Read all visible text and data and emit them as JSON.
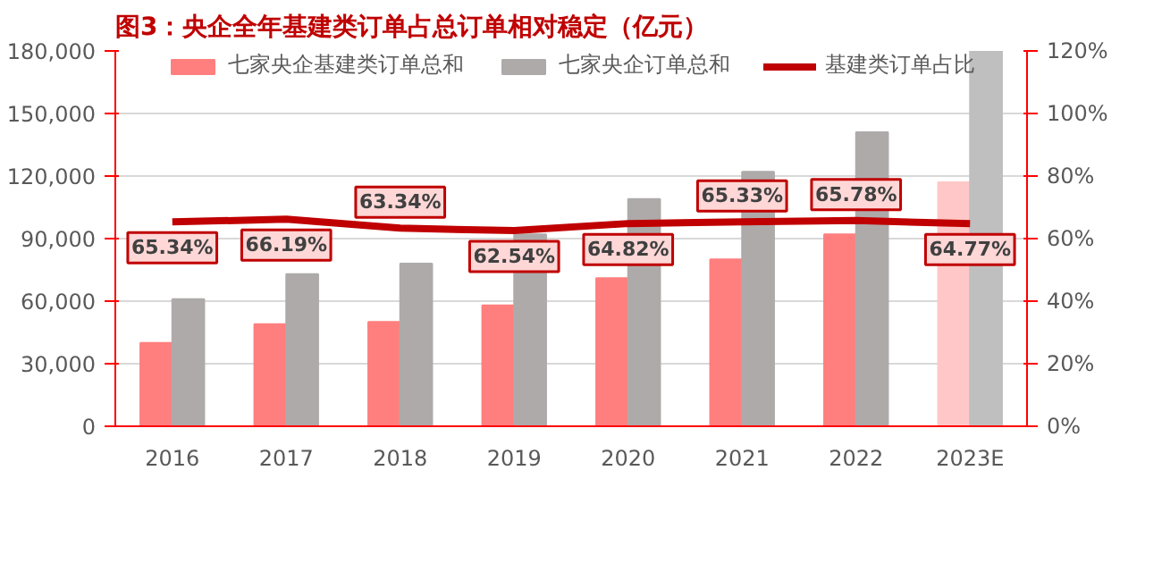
{
  "chart_data": {
    "type": "bar",
    "title": "图3：央企全年基建类订单占总订单相对稳定（亿元）",
    "categories": [
      "2016",
      "2017",
      "2018",
      "2019",
      "2020",
      "2021",
      "2022",
      "2023E"
    ],
    "series": [
      {
        "name": "七家央企基建类订单总和",
        "colors": [
          "#ff7f7f",
          "#ff7f7f",
          "#ff7f7f",
          "#ff7f7f",
          "#ff7f7f",
          "#ff7f7f",
          "#ff7f7f",
          "#ffc7c7"
        ],
        "values": [
          40000,
          49000,
          50000,
          58000,
          71000,
          80000,
          92000,
          117000
        ]
      },
      {
        "name": "七家央企订单总和",
        "colors": [
          "#aeaaaa",
          "#aeaaaa",
          "#aeaaaa",
          "#aeaaaa",
          "#aeaaaa",
          "#aeaaaa",
          "#aeaaaa",
          "#bfbfbf"
        ],
        "values": [
          61000,
          73000,
          78000,
          92000,
          109000,
          122000,
          141000,
          180000
        ]
      },
      {
        "name": "基建类订单占比",
        "type": "line",
        "axis": "y2",
        "color": "#c00000",
        "values": [
          65.34,
          66.19,
          63.34,
          62.54,
          64.82,
          65.33,
          65.78,
          64.77
        ],
        "value_labels": [
          "65.34%",
          "66.19%",
          "63.34%",
          "62.54%",
          "64.82%",
          "65.33%",
          "65.78%",
          "64.77%"
        ]
      }
    ],
    "ylim": [
      0,
      180000
    ],
    "yticks": [
      {
        "value": 0,
        "label": "0"
      },
      {
        "value": 30000,
        "label": "30,000"
      },
      {
        "value": 60000,
        "label": "60,000"
      },
      {
        "value": 90000,
        "label": "90,000"
      },
      {
        "value": 120000,
        "label": "120,000"
      },
      {
        "value": 150000,
        "label": "150,000"
      },
      {
        "value": 180000,
        "label": "180,000"
      }
    ],
    "y2lim": [
      0,
      120
    ],
    "y2ticks": [
      {
        "value": 0,
        "label": "0%"
      },
      {
        "value": 20,
        "label": "20%"
      },
      {
        "value": 40,
        "label": "40%"
      },
      {
        "value": 60,
        "label": "60%"
      },
      {
        "value": 80,
        "label": "80%"
      },
      {
        "value": 100,
        "label": "100%"
      },
      {
        "value": 120,
        "label": "120%"
      }
    ],
    "grid": "y",
    "legend": "top"
  }
}
